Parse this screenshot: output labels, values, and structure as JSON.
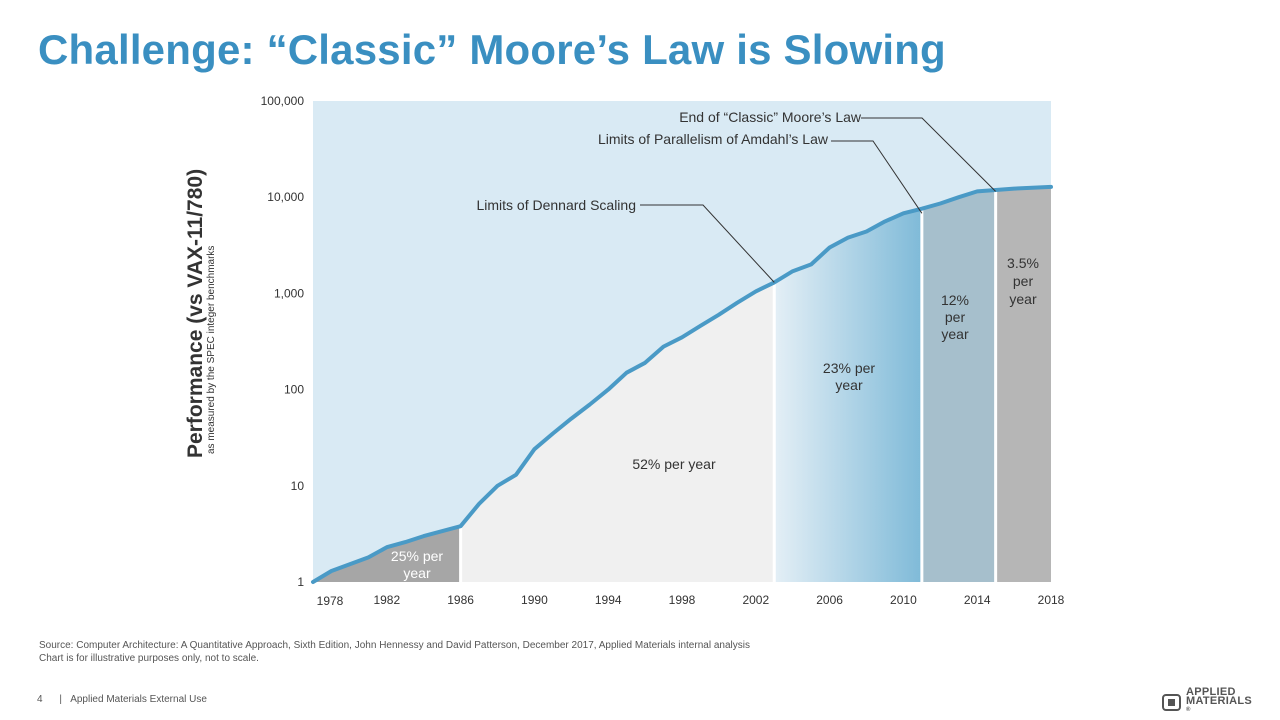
{
  "title": "Challenge: “Classic” Moore’s Law is Slowing",
  "colors": {
    "title": "#3a8fc1",
    "line": "#4a9ac6",
    "background_region": "#d9eaf4",
    "era_25": "#a6a6a6",
    "era_52": "#f0f0f0",
    "era_23_start": "#e4eff6",
    "era_23_end": "#7fbad8",
    "era_12": "#a6bfcc",
    "era_3_5": "#b6b6b6"
  },
  "chart_data": {
    "type": "line",
    "title": "",
    "ylabel": "Performance (vs VAX-11/780)",
    "ylabel_sub": "as measured by the SPEC integer benchmarks",
    "xlabel": "",
    "y_scale": "log",
    "ylim": [
      1,
      100000
    ],
    "xlim": [
      1978,
      2018
    ],
    "x_ticks": [
      1978,
      1982,
      1986,
      1990,
      1994,
      1998,
      2002,
      2006,
      2010,
      2014,
      2018
    ],
    "x_tick_labels": [
      "1978",
      "1982",
      "1986",
      "1990",
      "1994",
      "1998",
      "2002",
      "2006",
      "2010",
      "2014",
      "2018"
    ],
    "y_ticks": [
      1,
      10,
      100,
      1000,
      10000,
      100000
    ],
    "y_tick_labels": [
      "1",
      "10",
      "100",
      "1,000",
      "10,000",
      "100,000"
    ],
    "series": [
      {
        "name": "Performance",
        "points": [
          [
            1978,
            1
          ],
          [
            1979,
            1.3
          ],
          [
            1981,
            1.8
          ],
          [
            1982,
            2.3
          ],
          [
            1983,
            2.6
          ],
          [
            1984,
            3.0
          ],
          [
            1986,
            3.8
          ],
          [
            1987,
            6.5
          ],
          [
            1988,
            10
          ],
          [
            1989,
            13
          ],
          [
            1990,
            24
          ],
          [
            1991,
            35
          ],
          [
            1992,
            50
          ],
          [
            1993,
            70
          ],
          [
            1994,
            100
          ],
          [
            1995,
            150
          ],
          [
            1996,
            190
          ],
          [
            1997,
            280
          ],
          [
            1998,
            350
          ],
          [
            1999,
            460
          ],
          [
            2000,
            600
          ],
          [
            2001,
            800
          ],
          [
            2002,
            1050
          ],
          [
            2003,
            1300
          ],
          [
            2004,
            1700
          ],
          [
            2005,
            2000
          ],
          [
            2006,
            3000
          ],
          [
            2007,
            3800
          ],
          [
            2008,
            4400
          ],
          [
            2009,
            5600
          ],
          [
            2010,
            6800
          ],
          [
            2011,
            7600
          ],
          [
            2012,
            8600
          ],
          [
            2013,
            10000
          ],
          [
            2014,
            11500
          ],
          [
            2016,
            12300
          ],
          [
            2018,
            12800
          ]
        ]
      }
    ],
    "eras": [
      {
        "label": "25% per year",
        "start": 1978,
        "end": 1986
      },
      {
        "label": "52% per year",
        "start": 1986,
        "end": 2003
      },
      {
        "label": "23% per year",
        "start": 2003,
        "end": 2011
      },
      {
        "label": "12% per year",
        "start": 2011,
        "end": 2015
      },
      {
        "label": "3.5% per year",
        "start": 2015,
        "end": 2018
      }
    ],
    "annotations": [
      {
        "text": "End of “Classic” Moore’s Law",
        "target": [
          2015,
          11500
        ]
      },
      {
        "text": "Limits of Parallelism of Amdahl’s Law",
        "target": [
          2011,
          6800
        ]
      },
      {
        "text": "Limits of Dennard Scaling",
        "target": [
          2003,
          1300
        ]
      }
    ],
    "era_labels": [
      {
        "lines": [
          "25% per",
          "year"
        ]
      },
      {
        "lines": [
          "52% per year"
        ]
      },
      {
        "lines": [
          "23% per",
          "year"
        ]
      },
      {
        "lines": [
          "12%",
          "per",
          "year"
        ]
      },
      {
        "lines": [
          "3.5%",
          "per",
          "year"
        ]
      }
    ]
  },
  "source_line1": "Source: Computer Architecture: A Quantitative Approach, Sixth Edition, John Hennessy and David Patterson, December 2017,   Applied Materials internal analysis",
  "source_line2": "Chart is for illustrative purposes only, not to scale.",
  "footer": {
    "page_number": "4",
    "separator": "|",
    "classification": "Applied Materials External Use"
  },
  "logo": {
    "line1": "APPLIED",
    "line2": "MATERIALS",
    "mark": "®",
    "icon": "applied-materials-logo-icon"
  }
}
